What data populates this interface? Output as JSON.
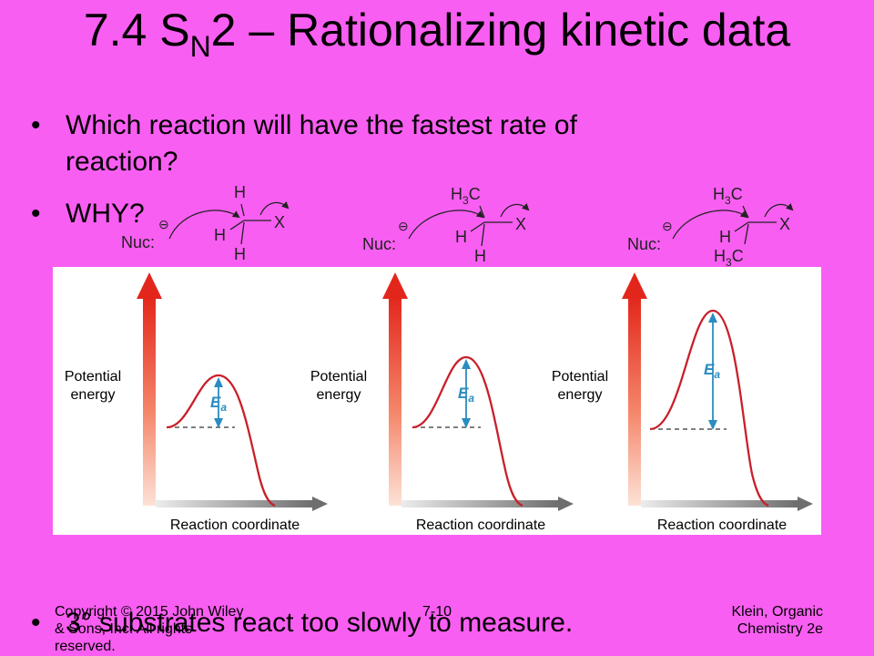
{
  "title": {
    "prefix": "7.4 S",
    "subscript": "N",
    "suffix": "2 – Rationalizing kinetic data"
  },
  "bullets": [
    {
      "symbol": "•",
      "line1": "Which reaction will have the fastest rate of",
      "line2": "reaction?"
    },
    {
      "symbol": "•",
      "text": "WHY?"
    },
    {
      "symbol": "•",
      "text": "3° substrates react too slowly to measure."
    }
  ],
  "mechanisms": [
    {
      "nuc": "Nuc:",
      "charge": "⊖",
      "top": "H",
      "left": "H",
      "bottom": "H",
      "leaving": "X"
    },
    {
      "nuc": "Nuc:",
      "charge": "⊖",
      "top": "H3C",
      "left": "H",
      "bottom": "H",
      "leaving": "X"
    },
    {
      "nuc": "Nuc:",
      "charge": "⊖",
      "top": "H3C",
      "left": "H",
      "bottom": "H3C",
      "leaving": "X"
    }
  ],
  "energy_diagrams": [
    {
      "ylabel_line1": "Potential",
      "ylabel_line2": "energy",
      "xlabel": "Reaction coordinate",
      "barrier_label": "E",
      "barrier_sub": "a",
      "relative_barrier": 0.3
    },
    {
      "ylabel_line1": "Potential",
      "ylabel_line2": "energy",
      "xlabel": "Reaction coordinate",
      "barrier_label": "E",
      "barrier_sub": "a",
      "relative_barrier": 0.4
    },
    {
      "ylabel_line1": "Potential",
      "ylabel_line2": "energy",
      "xlabel": "Reaction coordinate",
      "barrier_label": "E",
      "barrier_sub": "a",
      "relative_barrier": 0.64
    }
  ],
  "footer": {
    "left": "Copyright © 2015 John Wiley & Sons, Inc. All rights reserved.",
    "center": "7-10",
    "right_line1": "Klein, Organic",
    "right_line2": "Chemistry 2e"
  },
  "colors": {
    "background": "#f95ef2",
    "curve": "#c8202a",
    "barrier": "#2a8cc0",
    "axis_arrow": "#e83a2a",
    "panel": "#ffffff"
  }
}
